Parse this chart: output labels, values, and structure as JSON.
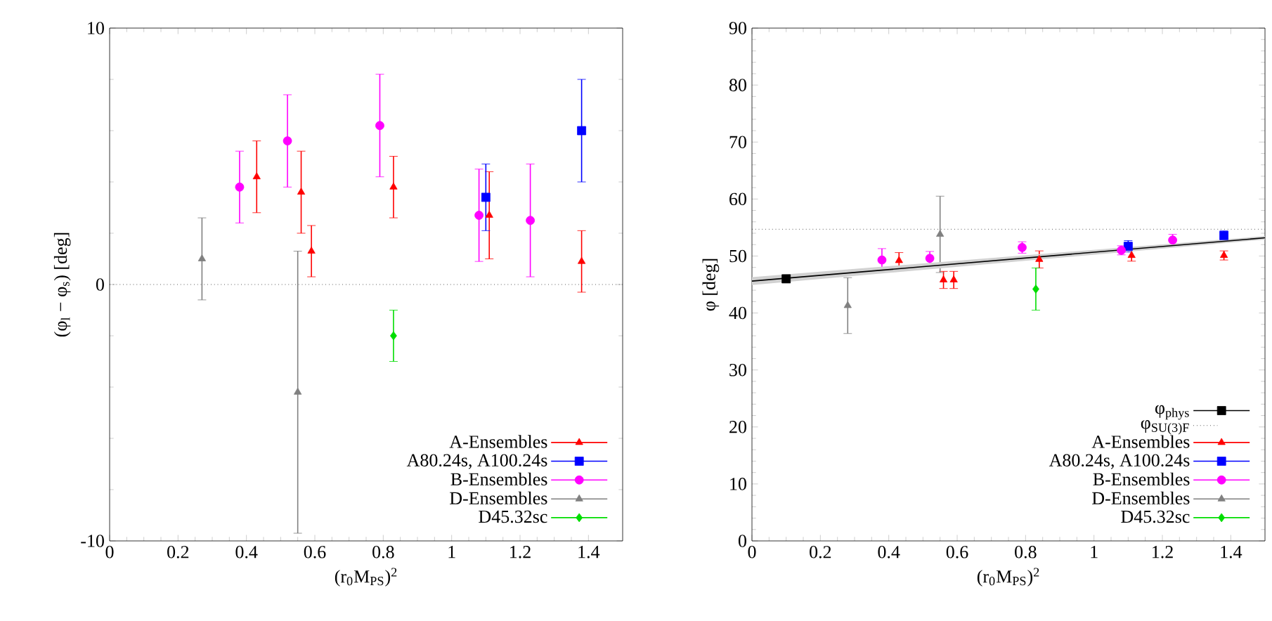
{
  "chart_data": [
    {
      "type": "scatter",
      "xlabel": "(r$_{0}$M$_{PS}$)$^{2}$",
      "ylabel": "(φ$_{l}$ − φ$_{s}$) [deg]",
      "xlim": [
        0,
        1.5
      ],
      "ylim": [
        -10,
        10
      ],
      "xticks": [
        0,
        0.2,
        0.4,
        0.6,
        0.8,
        1,
        1.2,
        1.4
      ],
      "yticks": [
        -10,
        0,
        10
      ],
      "legend": "bottom right",
      "ref_lines": [
        {
          "axis": "y",
          "value": 0,
          "line_style": "dotted",
          "color": "#000000"
        }
      ],
      "series": [
        {
          "name": "A-Ensembles",
          "color": "#ff0000",
          "marker": "triangle",
          "x": [
            0.43,
            0.56,
            0.59,
            0.83,
            1.11,
            1.38
          ],
          "values": [
            4.2,
            3.6,
            1.3,
            3.8,
            2.7,
            0.9
          ],
          "errors": [
            1.4,
            1.6,
            1.0,
            1.2,
            1.7,
            1.2
          ]
        },
        {
          "name": "A80.24s, A100.24s",
          "color": "#0000ff",
          "marker": "square",
          "x": [
            1.1,
            1.38
          ],
          "values": [
            3.4,
            6.0
          ],
          "errors": [
            1.3,
            2.0
          ]
        },
        {
          "name": "B-Ensembles",
          "color": "#ff00ff",
          "marker": "circle",
          "x": [
            0.38,
            0.52,
            0.79,
            1.08,
            1.23
          ],
          "values": [
            3.8,
            5.6,
            6.2,
            2.7,
            2.5
          ],
          "errors": [
            1.4,
            1.8,
            2.0,
            1.8,
            2.2
          ]
        },
        {
          "name": "D-Ensembles",
          "color": "#808080",
          "marker": "triangle",
          "x": [
            0.27,
            0.55
          ],
          "values": [
            1.0,
            -4.2
          ],
          "errors": [
            1.6,
            5.5
          ]
        },
        {
          "name": "D45.32sc",
          "color": "#00dd00",
          "marker": "diamond",
          "x": [
            0.83
          ],
          "values": [
            -2.0
          ],
          "errors": [
            1.0
          ]
        }
      ]
    },
    {
      "type": "scatter",
      "xlabel": "(r$_{0}$M$_{PS}$)$^{2}$",
      "ylabel": "φ [deg]",
      "xlim": [
        0,
        1.5
      ],
      "ylim": [
        0,
        90
      ],
      "xticks": [
        0,
        0.2,
        0.4,
        0.6,
        0.8,
        1,
        1.2,
        1.4
      ],
      "yticks": [
        0,
        10,
        20,
        30,
        40,
        50,
        60,
        70,
        80,
        90
      ],
      "legend": "bottom right",
      "ref_lines": [
        {
          "axis": "y",
          "value": 54.7,
          "label": "φ$_{SU(3)F}$",
          "line_style": "dotted",
          "color": "#000000"
        }
      ],
      "series": [
        {
          "name": "φ$_{phys}$",
          "color": "#000000",
          "marker": "square",
          "x": [
            0.1
          ],
          "values": [
            46.0
          ],
          "errors": [
            0.6
          ]
        },
        {
          "name": "A-Ensembles",
          "color": "#ff0000",
          "marker": "triangle",
          "x": [
            0.43,
            0.56,
            0.59,
            0.84,
            1.11,
            1.38
          ],
          "values": [
            49.2,
            45.8,
            45.8,
            49.4,
            50.1,
            50.1
          ],
          "errors": [
            1.4,
            1.5,
            1.5,
            1.5,
            1.0,
            0.8
          ]
        },
        {
          "name": "A80.24s, A100.24s",
          "color": "#0000ff",
          "marker": "square",
          "x": [
            1.1,
            1.38
          ],
          "values": [
            51.7,
            53.6
          ],
          "errors": [
            1.0,
            0.8
          ]
        },
        {
          "name": "B-Ensembles",
          "color": "#ff00ff",
          "marker": "circle",
          "x": [
            0.38,
            0.52,
            0.79,
            1.08,
            1.23
          ],
          "values": [
            49.3,
            49.6,
            51.5,
            51.0,
            52.8
          ],
          "errors": [
            2.0,
            1.2,
            1.0,
            0.8,
            1.0
          ]
        },
        {
          "name": "D-Ensembles",
          "color": "#808080",
          "marker": "triangle",
          "x": [
            0.28,
            0.55
          ],
          "values": [
            41.3,
            53.8
          ],
          "errors": [
            4.9,
            6.7
          ]
        },
        {
          "name": "D45.32sc",
          "color": "#00dd00",
          "marker": "diamond",
          "x": [
            0.83
          ],
          "values": [
            44.2
          ],
          "errors": [
            3.7
          ]
        },
        {
          "type": "line",
          "color": "#000000",
          "x": [
            0,
            1.5
          ],
          "values": [
            45.6,
            53.2
          ],
          "lower": [
            44.9,
            52.9
          ],
          "upper": [
            46.3,
            53.5
          ]
        }
      ]
    }
  ]
}
